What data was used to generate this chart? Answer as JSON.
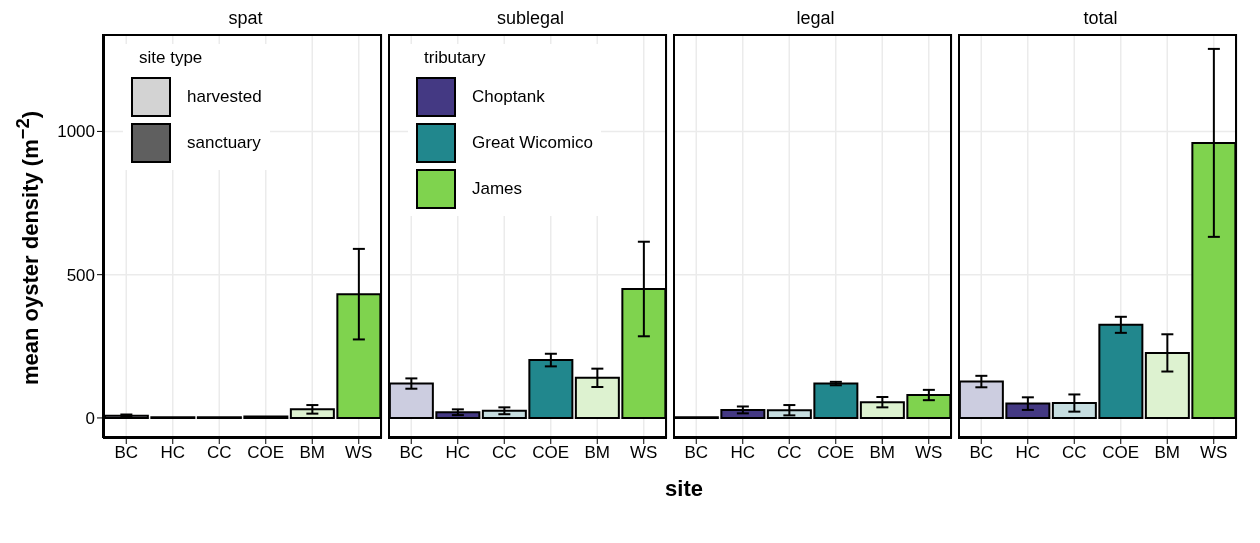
{
  "chart_data": [
    {
      "type": "bar",
      "title": "spat",
      "ylabel": "mean oyster density (m$^{−2}$)",
      "legend_title": "site type",
      "legend": "top left",
      "grid": true,
      "categories": [
        "BC",
        "HC",
        "CC",
        "COE",
        "BM",
        "WS"
      ],
      "ylim": [
        -70,
        1340
      ],
      "yticks": [
        0,
        500,
        1000
      ],
      "series": [
        {
          "colors": [
            "#cccde0",
            "#443983",
            "#c6dde0",
            "#21878d",
            "#ddf2d0",
            "#7fd34e"
          ],
          "values": [
            8,
            2,
            2,
            5,
            30,
            432
          ],
          "errors": [
            4,
            null,
            null,
            null,
            15,
            158
          ]
        },
        {
          "name": "harvested",
          "color": "#d3d3d3",
          "values": [
            null,
            null,
            null,
            null,
            null,
            null
          ]
        },
        {
          "name": "sanctuary",
          "color": "#5f5f5f",
          "values": [
            null,
            null,
            null,
            null,
            null,
            null
          ]
        }
      ]
    },
    {
      "type": "bar",
      "title": "sublegal",
      "xlabel": "site",
      "legend_title": "tributary",
      "legend": "top left",
      "grid": true,
      "tick_labels": "x",
      "categories": [
        "BC",
        "HC",
        "CC",
        "COE",
        "BM",
        "WS"
      ],
      "ylim": [
        -70,
        1340
      ],
      "yticks": [
        0,
        500,
        1000
      ],
      "series": [
        {
          "colors": [
            "#cccde0",
            "#443983",
            "#c6dde0",
            "#21878d",
            "#ddf2d0",
            "#7fd34e"
          ],
          "values": [
            120,
            20,
            25,
            202,
            140,
            450
          ],
          "errors": [
            18,
            10,
            12,
            22,
            32,
            165
          ]
        },
        {
          "name": "Choptank",
          "color": "#443983",
          "values": [
            null,
            null,
            null,
            null,
            null,
            null
          ]
        },
        {
          "name": "Great Wicomico",
          "color": "#21878d",
          "values": [
            null,
            null,
            null,
            null,
            null,
            null
          ]
        },
        {
          "name": "James",
          "color": "#7fd34e",
          "values": [
            null,
            null,
            null,
            null,
            null,
            null
          ]
        }
      ]
    },
    {
      "type": "bar",
      "title": "legal",
      "grid": true,
      "tick_labels": "x",
      "categories": [
        "BC",
        "HC",
        "CC",
        "COE",
        "BM",
        "WS"
      ],
      "ylim": [
        -70,
        1340
      ],
      "yticks": [
        0,
        500,
        1000
      ],
      "series": [
        {
          "colors": [
            "#cccde0",
            "#443983",
            "#c6dde0",
            "#21878d",
            "#ddf2d0",
            "#7fd34e"
          ],
          "values": [
            2,
            28,
            27,
            120,
            55,
            80
          ],
          "errors": [
            null,
            12,
            18,
            6,
            18,
            18
          ]
        }
      ]
    },
    {
      "type": "bar",
      "title": "total",
      "grid": true,
      "tick_labels": "x",
      "categories": [
        "BC",
        "HC",
        "CC",
        "COE",
        "BM",
        "WS"
      ],
      "ylim": [
        -70,
        1340
      ],
      "yticks": [
        0,
        500,
        1000
      ],
      "series": [
        {
          "colors": [
            "#cccde0",
            "#443983",
            "#c6dde0",
            "#21878d",
            "#ddf2d0",
            "#7fd34e"
          ],
          "values": [
            127,
            50,
            52,
            325,
            227,
            960
          ],
          "errors": [
            20,
            22,
            30,
            28,
            65,
            328
          ]
        }
      ]
    }
  ]
}
